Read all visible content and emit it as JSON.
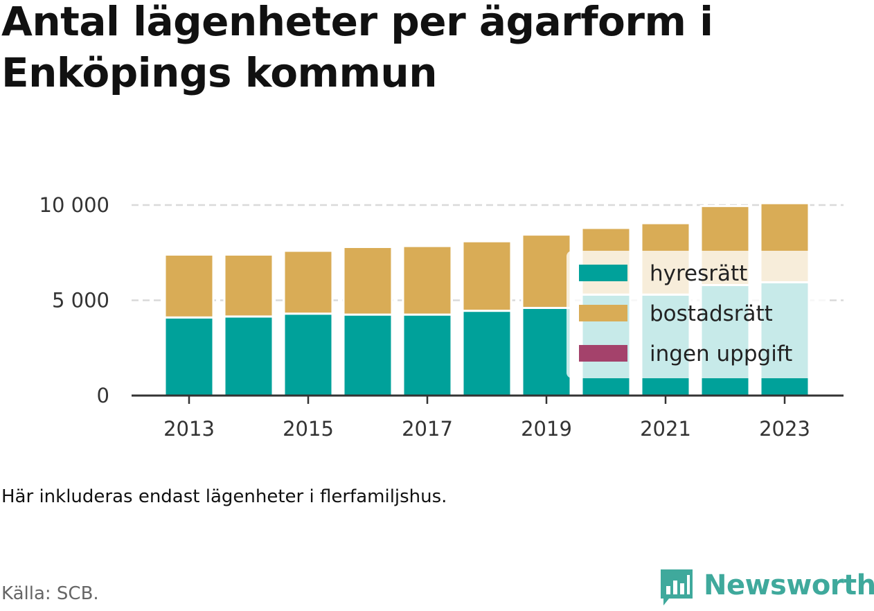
{
  "title": "Antal lägenheter per ägarform i Enköpings kommun",
  "note": "Här inkluderas endast lägenheter i flerfamiljshus.",
  "source": "Källa: SCB.",
  "brand": {
    "name": "Newsworthy",
    "icon": "bar-chart-speech-bubble-icon",
    "color": "#3fa99c"
  },
  "chart_data": {
    "type": "bar",
    "stacked": true,
    "categories": [
      "2013",
      "2014",
      "2015",
      "2016",
      "2017",
      "2018",
      "2019",
      "2020",
      "2021",
      "2022",
      "2023"
    ],
    "series": [
      {
        "name": "hyresrätt",
        "color": "#00a19a",
        "values": [
          4100,
          4150,
          4300,
          4250,
          4250,
          4450,
          4600,
          5300,
          5300,
          5800,
          5950
        ]
      },
      {
        "name": "bostadsrätt",
        "color": "#d9ac56",
        "values": [
          3300,
          3250,
          3300,
          3550,
          3600,
          3650,
          3850,
          3500,
          3750,
          4150,
          4150
        ]
      },
      {
        "name": "ingen uppgift",
        "color": "#a4426b",
        "values": [
          0,
          0,
          0,
          0,
          0,
          0,
          0,
          0,
          0,
          0,
          0
        ]
      }
    ],
    "x_tick_labels": [
      "2013",
      "2015",
      "2017",
      "2019",
      "2021",
      "2023"
    ],
    "y_ticks": [
      0,
      5000,
      10000
    ],
    "y_tick_labels": [
      "0",
      "5 000",
      "10 000"
    ],
    "ylim": [
      0,
      10000
    ],
    "grid": "horizontal dashed",
    "legend_position": "right-center"
  }
}
